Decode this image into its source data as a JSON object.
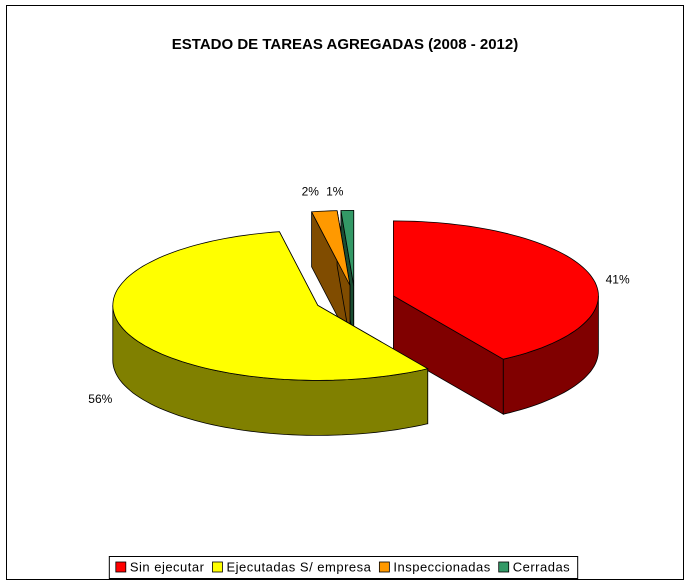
{
  "chart_data": {
    "type": "pie3d",
    "title": "ESTADO DE TAREAS AGREGADAS (2008 - 2012)",
    "categories": [
      "Sin ejecutar",
      "Ejecutadas S/ empresa",
      "Inspeccionadas",
      "Cerradas"
    ],
    "values": [
      41,
      56,
      2,
      1
    ],
    "value_labels": [
      "41%",
      "56%",
      "2%",
      "1%"
    ],
    "colors": [
      "#ff0000",
      "#ffff00",
      "#ff9900",
      "#339966"
    ],
    "side_colors": [
      "#800000",
      "#808000",
      "#804c00",
      "#1a4d33"
    ],
    "legend": "bottom"
  }
}
